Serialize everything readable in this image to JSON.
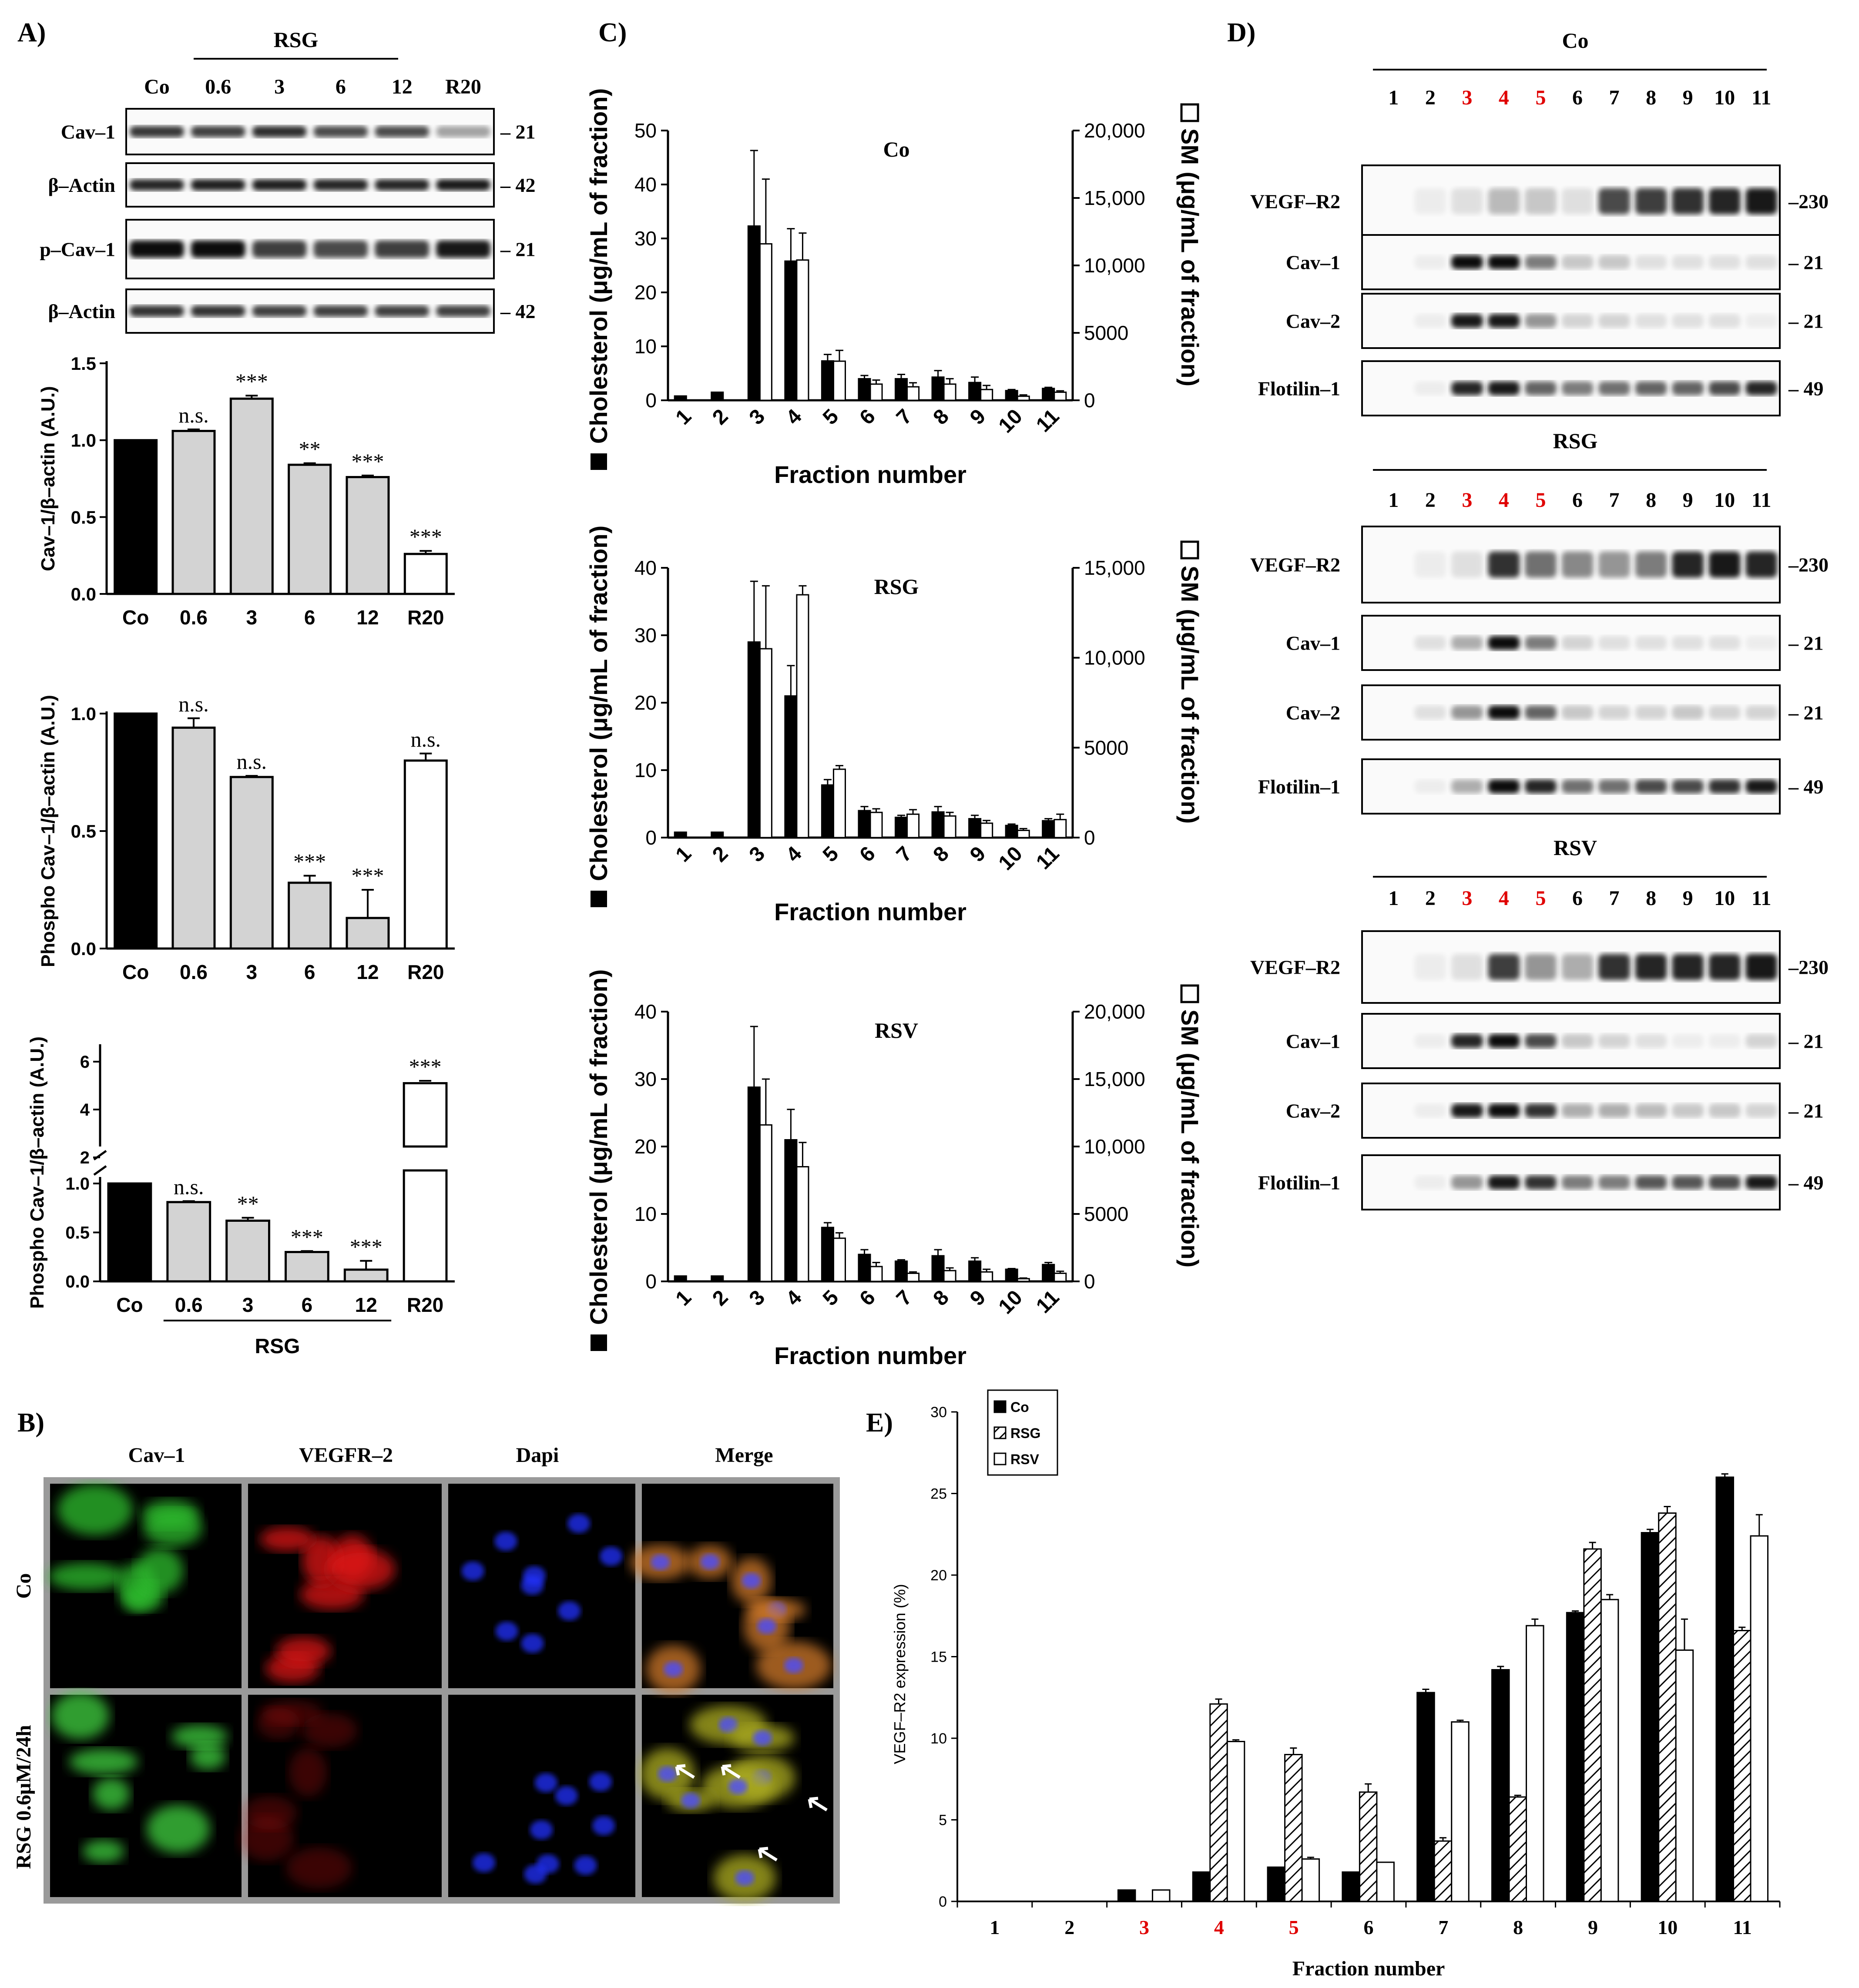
{
  "panels": {
    "A": "A)",
    "B": "B)",
    "C": "C)",
    "D": "D)",
    "E": "E)"
  },
  "blot_A": {
    "group_label": "RSG",
    "lanes": [
      "Co",
      "0.6",
      "3",
      "6",
      "12",
      "R20"
    ],
    "rows": [
      {
        "label": "Cav–1",
        "mw": "– 21",
        "intensity": [
          0.78,
          0.75,
          0.82,
          0.7,
          0.7,
          0.35
        ]
      },
      {
        "label": "β–Actin",
        "mw": "– 42",
        "intensity": [
          0.85,
          0.88,
          0.88,
          0.85,
          0.85,
          0.9
        ]
      },
      {
        "label": "p–Cav–1",
        "mw": "– 21",
        "intensity": [
          0.95,
          0.95,
          0.75,
          0.7,
          0.75,
          0.9
        ]
      },
      {
        "label": "β–Actin",
        "mw": "– 42",
        "intensity": [
          0.8,
          0.8,
          0.75,
          0.75,
          0.75,
          0.75
        ]
      }
    ]
  },
  "chart_data": [
    {
      "type": "bar",
      "categories": [
        "Co",
        "0.6",
        "3",
        "6",
        "12",
        "R20"
      ],
      "values": [
        1.0,
        1.06,
        1.27,
        0.84,
        0.76,
        0.26
      ],
      "errors": [
        0,
        0.01,
        0.02,
        0.01,
        0.01,
        0.02
      ],
      "annotations": [
        "",
        "n.s.",
        "***",
        "**",
        "***",
        "***"
      ],
      "bar_colors": [
        "#000000",
        "#d3d3d3",
        "#d3d3d3",
        "#d3d3d3",
        "#d3d3d3",
        "#ffffff"
      ],
      "ylabel": "Cav–1/β–actin (A.U.)",
      "ylim": [
        0,
        1.5
      ],
      "yticks": [
        "0.0",
        "0.5",
        "1.0",
        "1.5"
      ]
    },
    {
      "type": "bar",
      "categories": [
        "Co",
        "0.6",
        "3",
        "6",
        "12",
        "R20"
      ],
      "values": [
        1.0,
        0.94,
        0.73,
        0.28,
        0.13,
        0.8
      ],
      "errors": [
        0,
        0.04,
        0.005,
        0.03,
        0.12,
        0.03
      ],
      "annotations": [
        "",
        "n.s.",
        "n.s.",
        "***",
        "***",
        "n.s."
      ],
      "bar_colors": [
        "#000000",
        "#d3d3d3",
        "#d3d3d3",
        "#d3d3d3",
        "#d3d3d3",
        "#ffffff"
      ],
      "ylabel": "Phospho Cav–1/β–actin (A.U.)",
      "ylim": [
        0,
        1.0
      ],
      "yticks": [
        "0.0",
        "0.5",
        "1.0"
      ]
    },
    {
      "type": "bar",
      "categories": [
        "Co",
        "0.6",
        "3",
        "6",
        "12",
        "R20"
      ],
      "values": [
        1.0,
        0.81,
        0.62,
        0.3,
        0.12,
        5.1
      ],
      "errors": [
        0,
        0.01,
        0.03,
        0.01,
        0.09,
        0.1
      ],
      "annotations": [
        "",
        "n.s.",
        "**",
        "***",
        "***",
        "***"
      ],
      "bar_colors": [
        "#000000",
        "#d3d3d3",
        "#d3d3d3",
        "#d3d3d3",
        "#d3d3d3",
        "#ffffff"
      ],
      "ylabel": "Phospho Cav–1/β–actin (A.U.)",
      "broken_axis": {
        "lower": [
          0,
          1.0
        ],
        "upper": [
          2,
          6
        ]
      },
      "yticks_lower": [
        "0.0",
        "0.5",
        "1.0"
      ],
      "yticks_upper": [
        "2",
        "4",
        "6"
      ],
      "group_label": "RSG"
    },
    {
      "type": "bar",
      "title": "Co",
      "categories": [
        "1",
        "2",
        "3",
        "4",
        "5",
        "6",
        "7",
        "8",
        "9",
        "10",
        "11"
      ],
      "series": [
        {
          "name": "Cholesterol",
          "axis": "left",
          "values": [
            0.8,
            1.5,
            32.3,
            25.8,
            7.3,
            4.0,
            4.0,
            4.3,
            3.3,
            1.8,
            2.2
          ],
          "errors": [
            0,
            0,
            14,
            6,
            1.2,
            0.6,
            0.8,
            1.2,
            1.0,
            0.2,
            0.2
          ]
        },
        {
          "name": "SM",
          "axis": "right",
          "values": [
            0,
            0,
            11600,
            10400,
            2900,
            1200,
            1000,
            1200,
            800,
            300,
            600
          ],
          "errors": [
            0,
            0,
            4800,
            2000,
            800,
            300,
            300,
            400,
            300,
            100,
            100
          ]
        }
      ],
      "xlabel": "Fraction number",
      "ylabel": "Cholesterol (μg/mL of fraction)",
      "y2label": "SM (μg/mL of fraction)",
      "ylim": [
        0,
        50
      ],
      "y2lim": [
        0,
        20000
      ],
      "yticks": [
        "0",
        "10",
        "20",
        "30",
        "40",
        "50"
      ],
      "y2ticks": [
        "0",
        "5000",
        "10,000",
        "15,000",
        "20,000"
      ]
    },
    {
      "type": "bar",
      "title": "RSG",
      "categories": [
        "1",
        "2",
        "3",
        "4",
        "5",
        "6",
        "7",
        "8",
        "9",
        "10",
        "11"
      ],
      "series": [
        {
          "name": "Cholesterol",
          "axis": "left",
          "values": [
            0.8,
            0.8,
            29.0,
            21.0,
            7.8,
            4.0,
            3.0,
            3.8,
            2.8,
            1.8,
            2.5
          ],
          "errors": [
            0,
            0,
            9,
            4.5,
            0.8,
            0.6,
            0.3,
            0.8,
            0.5,
            0.2,
            0.3
          ]
        },
        {
          "name": "SM",
          "axis": "right",
          "values": [
            0,
            0,
            10500,
            13500,
            3800,
            1400,
            1300,
            1200,
            800,
            400,
            1000
          ],
          "errors": [
            0,
            0,
            3500,
            500,
            200,
            200,
            250,
            200,
            150,
            100,
            300
          ]
        }
      ],
      "xlabel": "Fraction number",
      "ylabel": "Cholesterol (μg/mL of fraction)",
      "y2label": "SM (μg/mL of fraction)",
      "ylim": [
        0,
        40
      ],
      "y2lim": [
        0,
        15000
      ],
      "yticks": [
        "0",
        "10",
        "20",
        "30",
        "40"
      ],
      "y2ticks": [
        "0",
        "5000",
        "10,000",
        "15,000"
      ]
    },
    {
      "type": "bar",
      "title": "RSV",
      "categories": [
        "1",
        "2",
        "3",
        "4",
        "5",
        "6",
        "7",
        "8",
        "9",
        "10",
        "11"
      ],
      "series": [
        {
          "name": "Cholesterol",
          "axis": "left",
          "values": [
            0.8,
            0.8,
            28.8,
            21.0,
            8.0,
            4.0,
            3.0,
            3.8,
            3.0,
            1.8,
            2.5
          ],
          "errors": [
            0,
            0,
            9,
            4.5,
            0.7,
            0.7,
            0.2,
            0.9,
            0.5,
            0.1,
            0.3
          ]
        },
        {
          "name": "SM",
          "axis": "right",
          "values": [
            0,
            0,
            11600,
            8500,
            3200,
            1100,
            600,
            800,
            700,
            200,
            600
          ],
          "errors": [
            0,
            0,
            3400,
            1800,
            400,
            300,
            100,
            200,
            200,
            50,
            150
          ]
        }
      ],
      "xlabel": "Fraction number",
      "ylabel": "Cholesterol (μg/mL of fraction)",
      "y2label": "SM (μg/mL of fraction)",
      "ylim": [
        0,
        40
      ],
      "y2lim": [
        0,
        20000
      ],
      "yticks": [
        "0",
        "10",
        "20",
        "30",
        "40"
      ],
      "y2ticks": [
        "0",
        "5000",
        "10,000",
        "15,000",
        "20,000"
      ]
    },
    {
      "type": "bar",
      "categories": [
        "1",
        "2",
        "3",
        "4",
        "5",
        "6",
        "7",
        "8",
        "9",
        "10",
        "11"
      ],
      "highlight_categories": [
        "3",
        "4",
        "5"
      ],
      "series": [
        {
          "name": "Co",
          "pattern": "solid",
          "values": [
            0,
            0,
            0.7,
            1.8,
            2.1,
            1.8,
            12.8,
            14.2,
            17.7,
            22.6,
            26.0
          ],
          "errors": [
            0,
            0,
            0,
            0,
            0,
            0,
            0.2,
            0.2,
            0.1,
            0.2,
            0.2
          ]
        },
        {
          "name": "RSG",
          "pattern": "hatched",
          "values": [
            0,
            0,
            0,
            12.1,
            9.0,
            6.7,
            3.7,
            6.4,
            21.6,
            23.8,
            16.6
          ],
          "errors": [
            0,
            0,
            0,
            0.3,
            0.4,
            0.5,
            0.2,
            0.1,
            0.4,
            0.4,
            0.2
          ]
        },
        {
          "name": "RSV",
          "pattern": "open",
          "values": [
            0,
            0,
            0.7,
            9.8,
            2.6,
            2.4,
            11.0,
            16.9,
            18.5,
            15.4,
            22.4
          ],
          "errors": [
            0,
            0,
            0,
            0.1,
            0.1,
            0,
            0.1,
            0.4,
            0.3,
            1.9,
            1.3
          ]
        }
      ],
      "xlabel": "Fraction number",
      "ylabel": "VEGF–R2 expression (%)",
      "ylim": [
        0,
        30
      ],
      "yticks": [
        "0",
        "5",
        "10",
        "15",
        "20",
        "25",
        "30"
      ],
      "legend": "top-left"
    }
  ],
  "micrographs": {
    "columns": [
      "Cav–1",
      "VEGFR–2",
      "Dapi",
      "Merge"
    ],
    "rows": [
      "Co",
      "RSG 0.6μM/24h"
    ]
  },
  "blot_D": [
    {
      "group_label": "Co",
      "fractions": [
        "1",
        "2",
        "3",
        "4",
        "5",
        "6",
        "7",
        "8",
        "9",
        "10",
        "11"
      ],
      "highlight_fractions": [
        "3",
        "4",
        "5"
      ],
      "rows": [
        {
          "label": "VEGF–R2",
          "mw": "–230",
          "intensity": [
            0,
            0.05,
            0.1,
            0.25,
            0.2,
            0.1,
            0.7,
            0.75,
            0.8,
            0.85,
            0.9
          ]
        },
        {
          "label": "Cav–1",
          "mw": "– 21",
          "intensity": [
            0,
            0.05,
            0.95,
            0.95,
            0.5,
            0.2,
            0.2,
            0.1,
            0.1,
            0.1,
            0.1
          ]
        },
        {
          "label": "Cav–2",
          "mw": "– 21",
          "intensity": [
            0,
            0.05,
            0.9,
            0.9,
            0.4,
            0.15,
            0.15,
            0.1,
            0.1,
            0.1,
            0.05
          ]
        },
        {
          "label": "Flotilin–1",
          "mw": "– 49",
          "intensity": [
            0,
            0.05,
            0.85,
            0.9,
            0.6,
            0.5,
            0.55,
            0.6,
            0.6,
            0.7,
            0.85
          ]
        }
      ]
    },
    {
      "group_label": "RSG",
      "fractions": [
        "1",
        "2",
        "3",
        "4",
        "5",
        "6",
        "7",
        "8",
        "9",
        "10",
        "11"
      ],
      "highlight_fractions": [
        "3",
        "4",
        "5"
      ],
      "rows": [
        {
          "label": "VEGF–R2",
          "mw": "–230",
          "intensity": [
            0,
            0.05,
            0.1,
            0.8,
            0.55,
            0.45,
            0.4,
            0.5,
            0.85,
            0.9,
            0.85
          ]
        },
        {
          "label": "Cav–1",
          "mw": "– 21",
          "intensity": [
            0,
            0.1,
            0.3,
            0.95,
            0.5,
            0.15,
            0.1,
            0.1,
            0.1,
            0.1,
            0.05
          ]
        },
        {
          "label": "Cav–2",
          "mw": "– 21",
          "intensity": [
            0,
            0.1,
            0.4,
            0.95,
            0.6,
            0.2,
            0.15,
            0.15,
            0.2,
            0.15,
            0.15
          ]
        },
        {
          "label": "Flotilin–1",
          "mw": "– 49",
          "intensity": [
            0,
            0.05,
            0.3,
            0.95,
            0.85,
            0.55,
            0.55,
            0.7,
            0.7,
            0.8,
            0.9
          ]
        }
      ]
    },
    {
      "group_label": "RSV",
      "fractions": [
        "1",
        "2",
        "3",
        "4",
        "5",
        "6",
        "7",
        "8",
        "9",
        "10",
        "11"
      ],
      "highlight_fractions": [
        "3",
        "4",
        "5"
      ],
      "rows": [
        {
          "label": "VEGF–R2",
          "mw": "–230",
          "intensity": [
            0,
            0.05,
            0.1,
            0.75,
            0.4,
            0.3,
            0.8,
            0.85,
            0.85,
            0.85,
            0.9
          ]
        },
        {
          "label": "Cav–1",
          "mw": "– 21",
          "intensity": [
            0,
            0.05,
            0.85,
            0.95,
            0.7,
            0.2,
            0.15,
            0.1,
            0.05,
            0.05,
            0.15
          ]
        },
        {
          "label": "Cav–2",
          "mw": "– 21",
          "intensity": [
            0,
            0.05,
            0.9,
            0.95,
            0.8,
            0.3,
            0.3,
            0.25,
            0.2,
            0.2,
            0.15
          ]
        },
        {
          "label": "Flotilin–1",
          "mw": "– 49",
          "intensity": [
            0,
            0.05,
            0.4,
            0.9,
            0.8,
            0.5,
            0.5,
            0.65,
            0.65,
            0.7,
            0.9
          ]
        }
      ]
    }
  ],
  "colors": {
    "highlight": "#e00000",
    "bar_black": "#000000",
    "bar_gray": "#d3d3d3"
  }
}
